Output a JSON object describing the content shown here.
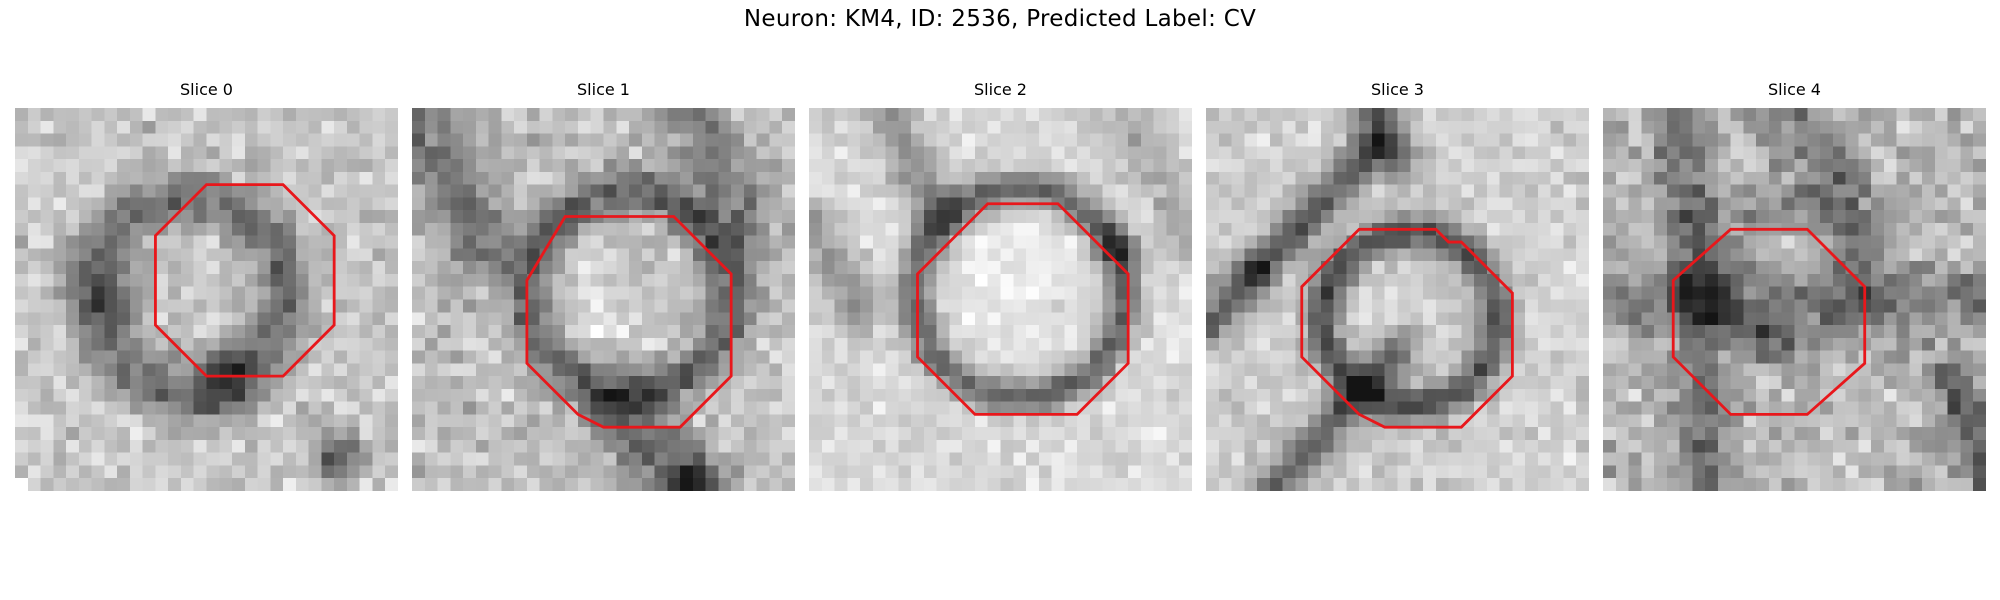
{
  "title": "Neuron: KM4, ID: 2536, Predicted Label: CV",
  "panels": [
    {
      "label": "Slice 0"
    },
    {
      "label": "Slice 1"
    },
    {
      "label": "Slice 2"
    },
    {
      "label": "Slice 3"
    },
    {
      "label": "Slice 4"
    }
  ],
  "colors": {
    "contour": "#e8171b",
    "colormap": "grayscale"
  }
}
